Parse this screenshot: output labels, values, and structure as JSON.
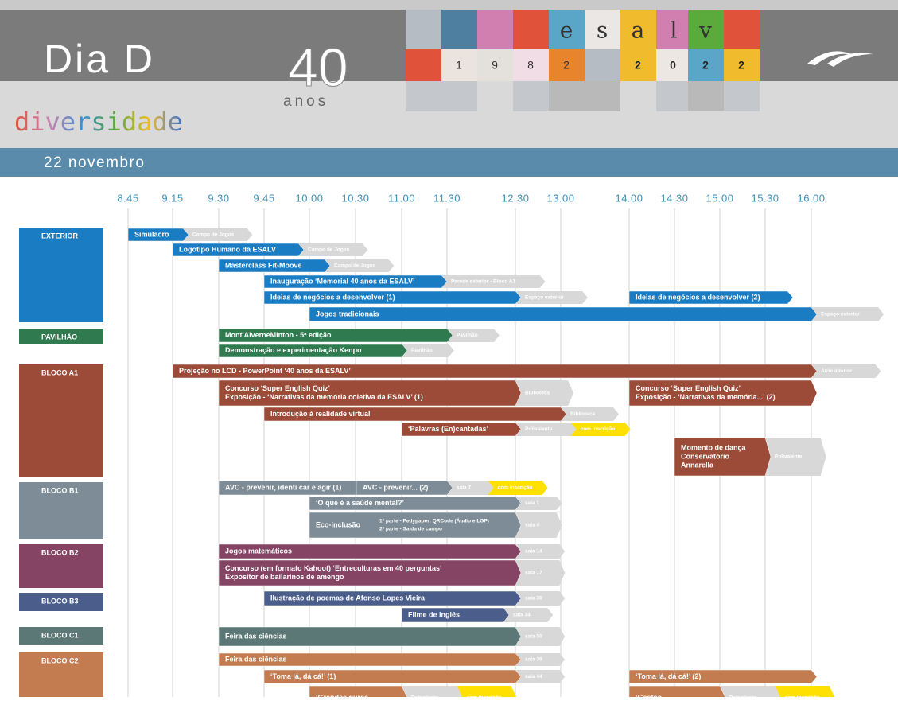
{
  "header": {
    "title": "Dia D",
    "subtitle": "diversidade",
    "anniversary": "40",
    "anniversary_unit": "anos",
    "brand_letters": [
      "e",
      "s",
      "a",
      "l",
      "v"
    ],
    "founded": [
      "1",
      "9",
      "8",
      "2"
    ],
    "year": [
      "2",
      "0",
      "2",
      "2"
    ],
    "date": "22 novembro"
  },
  "schedule": {
    "times": [
      "8.45",
      "9.15",
      "9.30",
      "9.45",
      "10.00",
      "10.30",
      "11.00",
      "11.30",
      "12.30",
      "13.00",
      "14.00",
      "14.30",
      "15.00",
      "15.30",
      "16.00"
    ],
    "sections": [
      {
        "name": "EXTERIOR",
        "color": "#1a7cc3",
        "events": [
          {
            "lines": [
              "Simulacro"
            ],
            "place": "Campo de Jogos"
          },
          {
            "lines": [
              "Logotipo Humano da ESALV"
            ],
            "place": "Campo de Jogos"
          },
          {
            "lines": [
              "Masterclass Fit-Moove"
            ],
            "place": "Campo de Jogos"
          },
          {
            "lines": [
              "Inauguração ‘Memorial 40 anos da ESALV’"
            ],
            "place": "Parede exterior - Bloco A1"
          },
          {
            "lines": [
              "Ideias de negócios a desenvolver (1)"
            ],
            "place": "Espaço exterior"
          },
          {
            "lines": [
              "Ideias de negócios a desenvolver (2)"
            ]
          },
          {
            "lines": [
              "Jogos tradicionais"
            ],
            "place": "Espaço exterior"
          }
        ]
      },
      {
        "name": "PAVILHÃO",
        "color": "#2f7b4f",
        "events": [
          {
            "lines": [
              "Mont'AlverneMinton - 5ª edição"
            ],
            "place": "Pavilhão"
          },
          {
            "lines": [
              "Demonstração e experimentação Kenpo"
            ],
            "place": "Pavilhão"
          }
        ]
      },
      {
        "name": "BLOCO A1",
        "color": "#9b4b37",
        "events": [
          {
            "lines": [
              "Projeção no LCD - PowerPoint ‘40 anos da ESALV’"
            ],
            "place": "Átrio interior"
          },
          {
            "lines": [
              "Concurso ‘Super English Quiz’",
              "Exposição - ‘Narrativas da memória coletiva da ESALV’ (1)"
            ],
            "place": "Biblioteca"
          },
          {
            "lines": [
              "Concurso ‘Super English Quiz’",
              "Exposição - ‘Narrativas da memória...’ (2)"
            ]
          },
          {
            "lines": [
              "Introdução à realidade virtual"
            ],
            "place": "Biblioteca"
          },
          {
            "lines": [
              "‘Palavras (En)cantadas’"
            ],
            "place": "Polivalente",
            "note": "com inscrição"
          },
          {
            "lines": [
              "Momento de dança",
              "Conservatório",
              "Annarella"
            ],
            "place": "Polivalente"
          }
        ]
      },
      {
        "name": "BLOCO B1",
        "color": "#7d8c96",
        "events": [
          {
            "lines": [
              "AVC - prevenir, identi car e agir (1)"
            ]
          },
          {
            "lines": [
              "AVC - prevenir... (2)"
            ],
            "place": "sala 7",
            "note": "com inscrição"
          },
          {
            "lines": [
              "‘O que é a saúde mental?’"
            ],
            "place": "sala 1"
          },
          {
            "lines": [
              "Eco-inclusão"
            ],
            "details": [
              "1ª parte - Pedypaper: QRCode (Áudio e LGP)",
              "2ª parte - Saída de campo"
            ],
            "place": "sala 4"
          }
        ]
      },
      {
        "name": "BLOCO B2",
        "color": "#864464",
        "events": [
          {
            "lines": [
              "Jogos matemáticos"
            ],
            "place": "sala 14"
          },
          {
            "lines": [
              "Concurso (em formato Kahoot) ‘Entreculturas em 40 perguntas’",
              "Expositor de bailarinos de    amengo"
            ],
            "place": "sala 17"
          }
        ]
      },
      {
        "name": "BLOCO B3",
        "color": "#4a5d8b",
        "events": [
          {
            "lines": [
              "Ilustração de poemas de Afonso Lopes Vieira"
            ],
            "place": "sala 30"
          },
          {
            "lines": [
              "Filme de inglês"
            ],
            "place": "sala 34"
          }
        ]
      },
      {
        "name": "BLOCO C1",
        "color": "#5b7876",
        "events": [
          {
            "lines": [
              "Feira das ciências"
            ],
            "place": "sala 50"
          }
        ]
      },
      {
        "name": "BLOCO C2",
        "color": "#c27c50",
        "events": [
          {
            "lines": [
              "Feira das ciências"
            ],
            "place": "sala 39"
          },
          {
            "lines": [
              "‘Toma lá, dá cá!’ (1)"
            ],
            "place": "sala 44"
          },
          {
            "lines": [
              "‘Toma lá, dá cá!’ (2)"
            ]
          },
          {
            "lines": [
              "‘Grandes    guras,"
            ],
            "place": "Polivalente",
            "note": "com inscrição"
          },
          {
            "lines": [
              "‘Gestão"
            ],
            "place": "Polivalente",
            "note": "com inscrição"
          }
        ]
      }
    ]
  }
}
